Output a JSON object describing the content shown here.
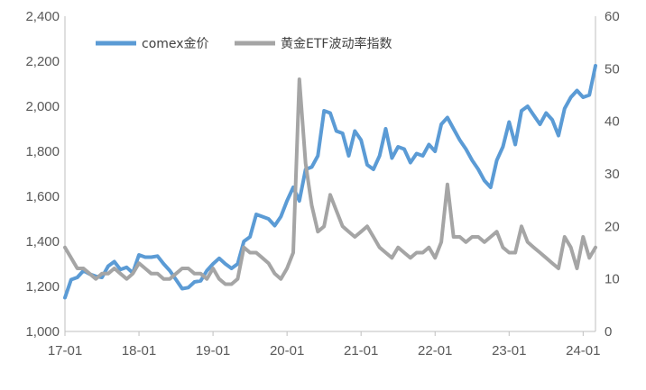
{
  "chart_data": {
    "type": "line",
    "title": "",
    "xlabel": "",
    "ylabel": "",
    "y2label": "",
    "x_tick_labels": [
      "17-01",
      "18-01",
      "19-01",
      "20-01",
      "21-01",
      "22-01",
      "23-01",
      "24-01"
    ],
    "left_axis": {
      "ylim": [
        1000,
        2400
      ],
      "tick_labels": [
        "1,000",
        "1,200",
        "1,400",
        "1,600",
        "1,800",
        "2,000",
        "2,200",
        "2,400"
      ],
      "tick_values": [
        1000,
        1200,
        1400,
        1600,
        1800,
        2000,
        2200,
        2400
      ]
    },
    "right_axis": {
      "ylim": [
        0,
        60
      ],
      "tick_labels": [
        "0",
        "10",
        "20",
        "30",
        "40",
        "50",
        "60"
      ],
      "tick_values": [
        0,
        10,
        20,
        30,
        40,
        50,
        60
      ]
    },
    "grid": false,
    "legend_position": "top-left",
    "series": [
      {
        "name": "comex金价",
        "axis": "left",
        "color": "#5b9bd5",
        "points": [
          [
            "2017-01",
            1150
          ],
          [
            "2017-02",
            1230
          ],
          [
            "2017-03",
            1240
          ],
          [
            "2017-04",
            1270
          ],
          [
            "2017-05",
            1255
          ],
          [
            "2017-06",
            1245
          ],
          [
            "2017-07",
            1240
          ],
          [
            "2017-08",
            1290
          ],
          [
            "2017-09",
            1310
          ],
          [
            "2017-10",
            1275
          ],
          [
            "2017-11",
            1285
          ],
          [
            "2017-12",
            1260
          ],
          [
            "2018-01",
            1340
          ],
          [
            "2018-02",
            1330
          ],
          [
            "2018-03",
            1330
          ],
          [
            "2018-04",
            1335
          ],
          [
            "2018-05",
            1300
          ],
          [
            "2018-06",
            1270
          ],
          [
            "2018-07",
            1230
          ],
          [
            "2018-08",
            1190
          ],
          [
            "2018-09",
            1195
          ],
          [
            "2018-10",
            1220
          ],
          [
            "2018-11",
            1225
          ],
          [
            "2018-12",
            1270
          ],
          [
            "2019-01",
            1300
          ],
          [
            "2019-02",
            1325
          ],
          [
            "2019-03",
            1300
          ],
          [
            "2019-04",
            1280
          ],
          [
            "2019-05",
            1300
          ],
          [
            "2019-06",
            1400
          ],
          [
            "2019-07",
            1420
          ],
          [
            "2019-08",
            1520
          ],
          [
            "2019-09",
            1510
          ],
          [
            "2019-10",
            1500
          ],
          [
            "2019-11",
            1470
          ],
          [
            "2019-12",
            1510
          ],
          [
            "2020-01",
            1580
          ],
          [
            "2020-02",
            1640
          ],
          [
            "2020-03",
            1580
          ],
          [
            "2020-04",
            1720
          ],
          [
            "2020-05",
            1730
          ],
          [
            "2020-06",
            1780
          ],
          [
            "2020-07",
            1980
          ],
          [
            "2020-08",
            1970
          ],
          [
            "2020-09",
            1890
          ],
          [
            "2020-10",
            1880
          ],
          [
            "2020-11",
            1780
          ],
          [
            "2020-12",
            1890
          ],
          [
            "2021-01",
            1850
          ],
          [
            "2021-02",
            1740
          ],
          [
            "2021-03",
            1720
          ],
          [
            "2021-04",
            1780
          ],
          [
            "2021-05",
            1900
          ],
          [
            "2021-06",
            1770
          ],
          [
            "2021-07",
            1820
          ],
          [
            "2021-08",
            1810
          ],
          [
            "2021-09",
            1750
          ],
          [
            "2021-10",
            1790
          ],
          [
            "2021-11",
            1780
          ],
          [
            "2021-12",
            1830
          ],
          [
            "2022-01",
            1800
          ],
          [
            "2022-02",
            1920
          ],
          [
            "2022-03",
            1950
          ],
          [
            "2022-04",
            1900
          ],
          [
            "2022-05",
            1850
          ],
          [
            "2022-06",
            1810
          ],
          [
            "2022-07",
            1760
          ],
          [
            "2022-08",
            1720
          ],
          [
            "2022-09",
            1670
          ],
          [
            "2022-10",
            1640
          ],
          [
            "2022-11",
            1760
          ],
          [
            "2022-12",
            1820
          ],
          [
            "2023-01",
            1930
          ],
          [
            "2023-02",
            1830
          ],
          [
            "2023-03",
            1980
          ],
          [
            "2023-04",
            2000
          ],
          [
            "2023-05",
            1960
          ],
          [
            "2023-06",
            1920
          ],
          [
            "2023-07",
            1970
          ],
          [
            "2023-08",
            1940
          ],
          [
            "2023-09",
            1870
          ],
          [
            "2023-10",
            1990
          ],
          [
            "2023-11",
            2040
          ],
          [
            "2023-12",
            2070
          ],
          [
            "2024-01",
            2040
          ],
          [
            "2024-02",
            2050
          ],
          [
            "2024-03",
            2180
          ]
        ]
      },
      {
        "name": "黄金ETF波动率指数",
        "axis": "right",
        "color": "#a5a5a5",
        "points": [
          [
            "2017-01",
            16
          ],
          [
            "2017-02",
            14
          ],
          [
            "2017-03",
            12
          ],
          [
            "2017-04",
            12
          ],
          [
            "2017-05",
            11
          ],
          [
            "2017-06",
            10
          ],
          [
            "2017-07",
            11
          ],
          [
            "2017-08",
            11
          ],
          [
            "2017-09",
            12
          ],
          [
            "2017-10",
            11
          ],
          [
            "2017-11",
            10
          ],
          [
            "2017-12",
            11
          ],
          [
            "2018-01",
            13
          ],
          [
            "2018-02",
            12
          ],
          [
            "2018-03",
            11
          ],
          [
            "2018-04",
            11
          ],
          [
            "2018-05",
            10
          ],
          [
            "2018-06",
            10
          ],
          [
            "2018-07",
            11
          ],
          [
            "2018-08",
            12
          ],
          [
            "2018-09",
            12
          ],
          [
            "2018-10",
            11
          ],
          [
            "2018-11",
            11
          ],
          [
            "2018-12",
            10
          ],
          [
            "2019-01",
            12
          ],
          [
            "2019-02",
            10
          ],
          [
            "2019-03",
            9
          ],
          [
            "2019-04",
            9
          ],
          [
            "2019-05",
            10
          ],
          [
            "2019-06",
            16
          ],
          [
            "2019-07",
            15
          ],
          [
            "2019-08",
            15
          ],
          [
            "2019-09",
            14
          ],
          [
            "2019-10",
            13
          ],
          [
            "2019-11",
            11
          ],
          [
            "2019-12",
            10
          ],
          [
            "2020-01",
            12
          ],
          [
            "2020-02",
            15
          ],
          [
            "2020-03",
            48
          ],
          [
            "2020-04",
            32
          ],
          [
            "2020-05",
            24
          ],
          [
            "2020-06",
            19
          ],
          [
            "2020-07",
            20
          ],
          [
            "2020-08",
            26
          ],
          [
            "2020-09",
            23
          ],
          [
            "2020-10",
            20
          ],
          [
            "2020-11",
            19
          ],
          [
            "2020-12",
            18
          ],
          [
            "2021-01",
            19
          ],
          [
            "2021-02",
            20
          ],
          [
            "2021-03",
            18
          ],
          [
            "2021-04",
            16
          ],
          [
            "2021-05",
            15
          ],
          [
            "2021-06",
            14
          ],
          [
            "2021-07",
            16
          ],
          [
            "2021-08",
            15
          ],
          [
            "2021-09",
            14
          ],
          [
            "2021-10",
            15
          ],
          [
            "2021-11",
            15
          ],
          [
            "2021-12",
            16
          ],
          [
            "2022-01",
            14
          ],
          [
            "2022-02",
            17
          ],
          [
            "2022-03",
            28
          ],
          [
            "2022-04",
            18
          ],
          [
            "2022-05",
            18
          ],
          [
            "2022-06",
            17
          ],
          [
            "2022-07",
            18
          ],
          [
            "2022-08",
            18
          ],
          [
            "2022-09",
            17
          ],
          [
            "2022-10",
            18
          ],
          [
            "2022-11",
            19
          ],
          [
            "2022-12",
            16
          ],
          [
            "2023-01",
            15
          ],
          [
            "2023-02",
            15
          ],
          [
            "2023-03",
            20
          ],
          [
            "2023-04",
            17
          ],
          [
            "2023-05",
            16
          ],
          [
            "2023-06",
            15
          ],
          [
            "2023-07",
            14
          ],
          [
            "2023-08",
            13
          ],
          [
            "2023-09",
            12
          ],
          [
            "2023-10",
            18
          ],
          [
            "2023-11",
            16
          ],
          [
            "2023-12",
            12
          ],
          [
            "2024-01",
            18
          ],
          [
            "2024-02",
            14
          ],
          [
            "2024-03",
            16
          ]
        ]
      }
    ]
  }
}
